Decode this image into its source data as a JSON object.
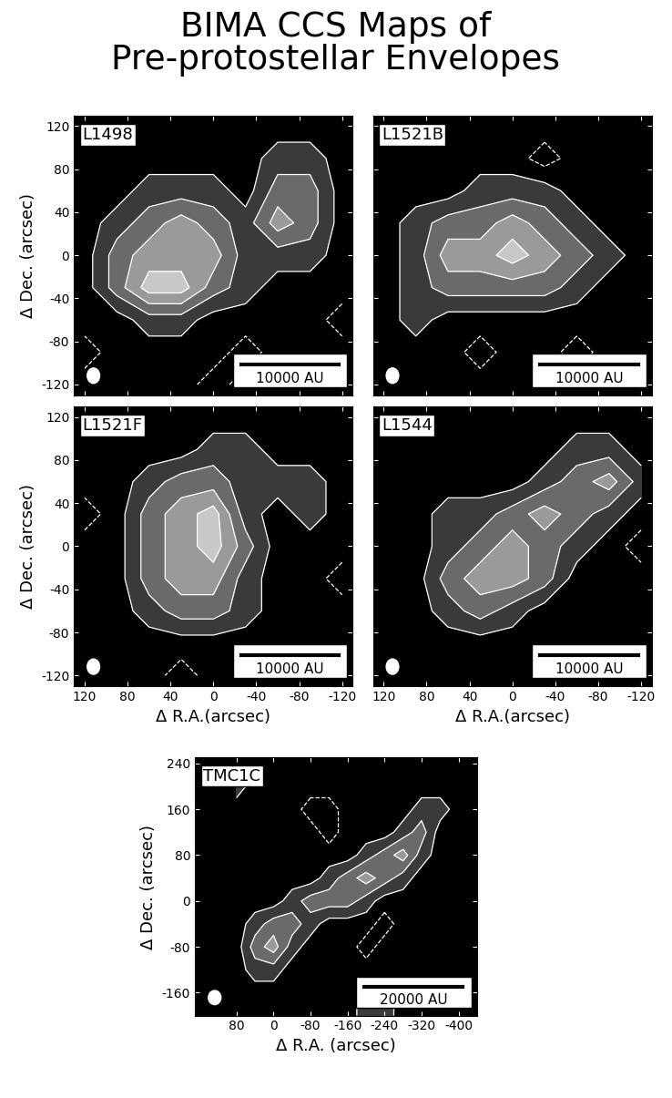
{
  "title": "BIMA CCS Maps of\nPre-protostellar Envelopes",
  "chart_data": [
    {
      "type": "contour",
      "title": "L1498",
      "color": "black",
      "ylabel": "Δ Dec. (arcsec)",
      "tick_labels": "y",
      "annotations": [
        "10000 AU"
      ],
      "xlim": [
        130,
        -130
      ],
      "ylim": [
        -130,
        130
      ],
      "xticks": [
        120,
        80,
        40,
        0,
        -40,
        -80,
        -120
      ],
      "yticks": [
        -120,
        -80,
        -40,
        0,
        40,
        80,
        120
      ],
      "levels": [
        0.5,
        1.5,
        2.5,
        3.5
      ],
      "negative_levels": [
        -0.5
      ],
      "x": [
        120,
        90,
        60,
        30,
        0,
        -30,
        -60,
        -90,
        -120
      ],
      "y": [
        120,
        90,
        60,
        30,
        0,
        -30,
        -60,
        -90,
        -120
      ],
      "cells": [
        [
          0,
          0,
          0,
          0,
          0,
          0,
          0,
          0,
          0
        ],
        [
          0,
          0,
          0,
          0,
          0,
          0,
          1,
          1,
          0
        ],
        [
          0,
          0,
          1,
          1,
          1,
          0,
          2,
          2,
          0
        ],
        [
          0,
          1,
          2,
          3,
          2,
          1,
          3,
          2,
          0
        ],
        [
          0,
          2,
          3,
          3,
          3,
          1,
          1,
          1,
          0
        ],
        [
          0,
          2,
          4,
          4,
          2,
          1,
          0,
          0,
          0
        ],
        [
          0,
          0,
          1,
          1,
          0,
          0,
          0,
          0,
          -1
        ],
        [
          -1,
          0,
          0,
          0,
          0,
          -1,
          0,
          0,
          0
        ],
        [
          0,
          0,
          0,
          0,
          -1,
          0,
          0,
          0,
          0
        ]
      ]
    },
    {
      "type": "contour",
      "title": "L1521B",
      "color": "black",
      "tick_labels": false,
      "annotations": [
        "10000 AU"
      ],
      "xlim": [
        130,
        -130
      ],
      "ylim": [
        -130,
        130
      ],
      "xticks": [
        120,
        80,
        40,
        0,
        -40,
        -80,
        -120
      ],
      "yticks": [
        -120,
        -80,
        -40,
        0,
        40,
        80,
        120
      ],
      "levels": [
        0.5,
        1.5,
        2.5,
        3.5
      ],
      "negative_levels": [
        -0.5
      ],
      "x": [
        120,
        90,
        60,
        30,
        0,
        -30,
        -60,
        -90,
        -120
      ],
      "y": [
        120,
        90,
        60,
        30,
        0,
        -30,
        -60,
        -90,
        -120
      ],
      "cells": [
        [
          0,
          0,
          0,
          0,
          0,
          0,
          0,
          0,
          0
        ],
        [
          0,
          0,
          0,
          0,
          0,
          -1,
          0,
          0,
          0
        ],
        [
          0,
          0,
          0,
          1,
          1,
          1,
          0,
          0,
          0
        ],
        [
          0,
          1,
          2,
          2,
          3,
          2,
          1,
          0,
          0
        ],
        [
          0,
          1,
          3,
          3,
          4,
          3,
          2,
          1,
          0
        ],
        [
          0,
          1,
          2,
          2,
          2,
          2,
          1,
          0,
          0
        ],
        [
          0,
          1,
          0,
          0,
          0,
          0,
          0,
          0,
          0
        ],
        [
          0,
          0,
          0,
          -1,
          0,
          0,
          -1,
          0,
          0
        ],
        [
          0,
          0,
          0,
          0,
          0,
          0,
          0,
          0,
          0
        ]
      ]
    },
    {
      "type": "contour",
      "title": "L1521F",
      "color": "black",
      "ylabel": "Δ Dec. (arcsec)",
      "xlabel": "Δ R.A.(arcsec)",
      "tick_labels": true,
      "annotations": [
        "10000 AU"
      ],
      "xlim": [
        130,
        -130
      ],
      "ylim": [
        -130,
        130
      ],
      "xticks": [
        120,
        80,
        40,
        0,
        -40,
        -80,
        -120
      ],
      "yticks": [
        -120,
        -80,
        -40,
        0,
        40,
        80,
        120
      ],
      "levels": [
        0.5,
        1.5,
        2.5,
        3.5
      ],
      "negative_levels": [
        -0.5
      ],
      "x": [
        120,
        90,
        60,
        30,
        0,
        -30,
        -60,
        -90,
        -120
      ],
      "y": [
        120,
        90,
        60,
        30,
        0,
        -30,
        -60,
        -90,
        -120
      ],
      "cells": [
        [
          0,
          0,
          0,
          0,
          0,
          0,
          0,
          0,
          0
        ],
        [
          0,
          0,
          0,
          0,
          1,
          1,
          0,
          0,
          0
        ],
        [
          0,
          0,
          1,
          2,
          2,
          1,
          1,
          1,
          0
        ],
        [
          -1,
          0,
          2,
          3,
          4,
          1,
          0,
          1,
          0
        ],
        [
          0,
          0,
          2,
          3,
          4,
          2,
          0,
          0,
          0
        ],
        [
          0,
          0,
          2,
          3,
          3,
          1,
          0,
          0,
          -1
        ],
        [
          0,
          0,
          1,
          2,
          2,
          1,
          0,
          0,
          0
        ],
        [
          0,
          0,
          0,
          0,
          0,
          0,
          0,
          0,
          0
        ],
        [
          0,
          0,
          0,
          -1,
          0,
          0,
          0,
          0,
          0
        ]
      ]
    },
    {
      "type": "contour",
      "title": "L1544",
      "color": "black",
      "xlabel": "Δ R.A.(arcsec)",
      "tick_labels": "x",
      "annotations": [
        "10000 AU"
      ],
      "xlim": [
        130,
        -130
      ],
      "ylim": [
        -130,
        130
      ],
      "xticks": [
        120,
        80,
        40,
        0,
        -40,
        -80,
        -120
      ],
      "yticks": [
        -120,
        -80,
        -40,
        0,
        40,
        80,
        120
      ],
      "levels": [
        0.5,
        1.5,
        2.5,
        3.5
      ],
      "negative_levels": [
        -0.5
      ],
      "x": [
        120,
        90,
        60,
        30,
        0,
        -30,
        -60,
        -90,
        -120
      ],
      "y": [
        120,
        90,
        60,
        30,
        0,
        -30,
        -60,
        -90,
        -120
      ],
      "cells": [
        [
          0,
          0,
          0,
          0,
          0,
          0,
          0,
          0,
          0
        ],
        [
          0,
          0,
          0,
          0,
          0,
          0,
          1,
          1,
          0
        ],
        [
          0,
          0,
          0,
          0,
          0,
          1,
          2,
          3,
          1
        ],
        [
          0,
          0,
          1,
          1,
          2,
          3,
          2,
          1,
          0
        ],
        [
          0,
          0,
          1,
          2,
          3,
          2,
          1,
          0,
          -1
        ],
        [
          0,
          0,
          2,
          3,
          3,
          2,
          0,
          0,
          0
        ],
        [
          0,
          0,
          1,
          2,
          1,
          0,
          0,
          0,
          0
        ],
        [
          0,
          0,
          0,
          0,
          0,
          0,
          0,
          0,
          0
        ],
        [
          0,
          0,
          0,
          0,
          0,
          0,
          0,
          0,
          0
        ]
      ]
    },
    {
      "type": "contour",
      "title": "TMC1C",
      "color": "black",
      "ylabel": "Δ Dec. (arcsec)",
      "xlabel": "Δ R.A. (arcsec)",
      "tick_labels": true,
      "annotations": [
        "20000 AU"
      ],
      "xlim": [
        170,
        -440
      ],
      "ylim": [
        -200,
        250
      ],
      "xticks": [
        80,
        0,
        -80,
        -160,
        -240,
        -320,
        -400
      ],
      "yticks": [
        -160,
        -80,
        0,
        80,
        160,
        240
      ],
      "levels": [
        0.5,
        1.5,
        2.5,
        3.5
      ],
      "negative_levels": [
        -0.5
      ],
      "x": [
        80,
        40,
        0,
        -40,
        -80,
        -120,
        -160,
        -200,
        -240,
        -280,
        -320,
        -360,
        -400,
        -440
      ],
      "y": [
        240,
        200,
        160,
        120,
        80,
        40,
        0,
        -40,
        -80,
        -120,
        -160,
        -200
      ],
      "cells": [
        [
          0,
          0,
          0,
          0,
          0,
          0,
          0,
          0,
          0,
          0,
          0,
          0,
          0,
          0
        ],
        [
          1,
          0,
          0,
          0,
          0,
          0,
          0,
          0,
          0,
          0,
          0,
          0,
          0,
          0
        ],
        [
          0,
          0,
          0,
          0,
          -1,
          -1,
          0,
          0,
          0,
          0,
          1,
          1,
          0,
          0
        ],
        [
          0,
          0,
          0,
          0,
          0,
          -1,
          0,
          0,
          0,
          1,
          2,
          0,
          0,
          0
        ],
        [
          0,
          0,
          0,
          0,
          0,
          0,
          0,
          1,
          2,
          3,
          1,
          0,
          0,
          0
        ],
        [
          0,
          0,
          0,
          0,
          0,
          1,
          2,
          3,
          2,
          1,
          0,
          0,
          0,
          0
        ],
        [
          0,
          0,
          0,
          1,
          2,
          2,
          2,
          1,
          0,
          0,
          0,
          0,
          0,
          0
        ],
        [
          0,
          1,
          2,
          2,
          1,
          0,
          0,
          0,
          -1,
          0,
          0,
          0,
          0,
          0
        ],
        [
          0,
          2,
          3,
          1,
          0,
          0,
          0,
          -1,
          0,
          0,
          0,
          0,
          0,
          0
        ],
        [
          0,
          1,
          1,
          0,
          0,
          0,
          0,
          0,
          0,
          0,
          0,
          0,
          0,
          0
        ],
        [
          0,
          0,
          0,
          0,
          0,
          0,
          0,
          1,
          1,
          0,
          0,
          0,
          0,
          0
        ],
        [
          0,
          0,
          0,
          0,
          0,
          0,
          0,
          1,
          1,
          0,
          0,
          0,
          0,
          0
        ]
      ]
    }
  ]
}
